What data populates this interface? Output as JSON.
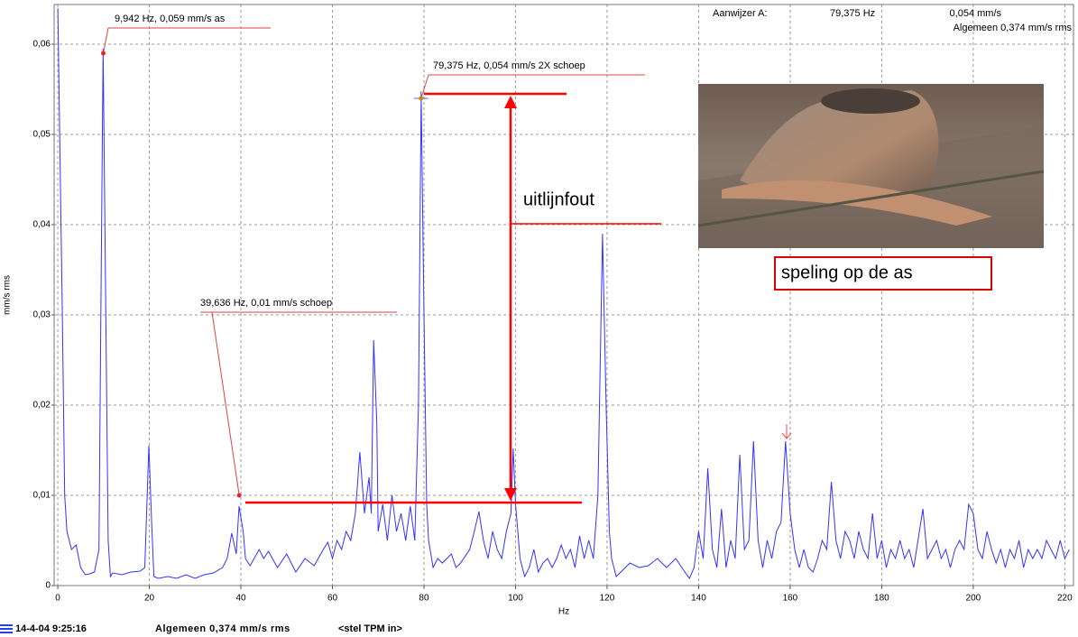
{
  "chart_data": {
    "type": "line",
    "color": "#3333ff",
    "y_label": "mm/s rms",
    "x_label": "Hz",
    "xlim": [
      -0.8,
      221.9
    ],
    "ylim": [
      0,
      0.0644
    ],
    "xticks": [
      0,
      20,
      40,
      60,
      80,
      100,
      120,
      140,
      160,
      180,
      200,
      220
    ],
    "yticks": [
      0,
      {
        "value": 0.01,
        "label": "0,01"
      },
      {
        "value": 0.02,
        "label": "0,02"
      },
      {
        "value": 0.03,
        "label": "0,03"
      },
      {
        "value": 0.04,
        "label": "0,04"
      },
      {
        "value": 0.05,
        "label": "0,05"
      },
      {
        "value": 0.06,
        "label": "0,06"
      }
    ],
    "grid": true,
    "x": [
      0,
      1,
      1.5,
      2,
      3,
      4,
      5,
      6,
      7,
      8,
      9,
      9.4,
      9.9,
      10.5,
      11,
      11.5,
      12,
      14,
      16,
      18,
      19,
      19.4,
      19.9,
      20.5,
      21,
      22,
      24,
      26,
      28,
      30,
      32,
      34,
      36,
      37,
      38,
      39,
      39.6,
      40.5,
      41,
      42,
      44,
      45,
      46,
      48,
      50,
      52,
      54,
      56,
      58,
      59,
      60,
      61,
      62,
      63,
      64,
      65,
      66,
      67,
      68,
      68.5,
      69,
      69.7,
      70,
      71,
      72,
      73,
      74,
      75,
      76,
      77,
      78,
      78.8,
      79.4,
      80,
      80.6,
      81,
      82,
      83,
      84,
      86,
      87,
      88,
      90,
      91,
      92,
      93,
      94,
      95,
      96,
      97,
      98,
      99,
      99.5,
      100,
      101,
      102,
      103,
      104,
      105,
      106,
      107,
      108,
      109,
      110,
      111,
      112,
      113,
      114,
      115,
      116,
      117,
      118,
      119,
      119.8,
      120.5,
      121,
      122,
      123,
      125,
      127,
      129,
      131,
      133,
      135,
      137,
      138,
      139,
      140,
      141,
      142,
      143,
      144,
      145,
      146,
      147,
      148,
      149,
      150,
      151,
      152,
      153,
      154,
      155,
      156,
      157,
      158,
      159,
      160,
      161,
      162,
      163,
      164,
      165,
      166,
      167,
      168,
      169,
      170,
      171,
      172,
      173,
      174,
      175,
      176,
      177,
      178,
      179,
      180,
      181,
      182,
      183,
      184,
      185,
      186,
      187,
      189,
      190,
      191,
      192,
      193,
      194,
      195,
      196,
      197,
      198,
      199,
      200,
      201,
      202,
      203,
      204,
      205,
      206,
      207,
      208,
      209,
      210,
      211,
      212,
      213,
      214,
      215,
      216,
      217,
      218,
      219,
      220,
      221
    ],
    "values": [
      0.064,
      0.03,
      0.01,
      0.006,
      0.004,
      0.0045,
      0.002,
      0.0012,
      0.0013,
      0.0015,
      0.004,
      0.03,
      0.0595,
      0.03,
      0.005,
      0.001,
      0.0014,
      0.0012,
      0.0015,
      0.0016,
      0.002,
      0.008,
      0.0155,
      0.007,
      0.001,
      0.0008,
      0.001,
      0.0008,
      0.0012,
      0.0008,
      0.0012,
      0.0014,
      0.002,
      0.003,
      0.0058,
      0.0035,
      0.0088,
      0.006,
      0.003,
      0.0022,
      0.004,
      0.003,
      0.0038,
      0.002,
      0.0035,
      0.0015,
      0.003,
      0.0022,
      0.004,
      0.0048,
      0.003,
      0.005,
      0.004,
      0.006,
      0.005,
      0.008,
      0.0148,
      0.008,
      0.012,
      0.008,
      0.0272,
      0.018,
      0.006,
      0.009,
      0.005,
      0.01,
      0.006,
      0.008,
      0.005,
      0.0088,
      0.005,
      0.02,
      0.0545,
      0.03,
      0.009,
      0.005,
      0.002,
      0.003,
      0.0025,
      0.0035,
      0.002,
      0.0025,
      0.004,
      0.006,
      0.0082,
      0.005,
      0.003,
      0.006,
      0.004,
      0.003,
      0.006,
      0.008,
      0.0152,
      0.009,
      0.003,
      0.001,
      0.002,
      0.004,
      0.0015,
      0.0025,
      0.003,
      0.002,
      0.003,
      0.0045,
      0.003,
      0.004,
      0.002,
      0.0055,
      0.003,
      0.005,
      0.003,
      0.01,
      0.039,
      0.02,
      0.006,
      0.003,
      0.001,
      0.0015,
      0.0025,
      0.002,
      0.0022,
      0.003,
      0.002,
      0.003,
      0.0015,
      0.0008,
      0.002,
      0.006,
      0.003,
      0.013,
      0.004,
      0.002,
      0.0085,
      0.002,
      0.005,
      0.003,
      0.0145,
      0.004,
      0.005,
      0.016,
      0.005,
      0.002,
      0.005,
      0.003,
      0.006,
      0.007,
      0.016,
      0.008,
      0.004,
      0.002,
      0.004,
      0.002,
      0.0015,
      0.003,
      0.005,
      0.004,
      0.0115,
      0.005,
      0.003,
      0.006,
      0.005,
      0.003,
      0.006,
      0.004,
      0.003,
      0.008,
      0.003,
      0.005,
      0.002,
      0.004,
      0.003,
      0.005,
      0.003,
      0.004,
      0.002,
      0.0085,
      0.003,
      0.004,
      0.005,
      0.003,
      0.004,
      0.002,
      0.004,
      0.005,
      0.004,
      0.009,
      0.008,
      0.004,
      0.003,
      0.006,
      0.004,
      0.0025,
      0.004,
      0.002,
      0.004,
      0.003,
      0.005,
      0.002,
      0.004,
      0.003,
      0.004,
      0.003,
      0.005,
      0.004,
      0.003,
      0.005,
      0.003,
      0.004
    ],
    "annotations": [
      {
        "text": "9,942 Hz, 0,059 mm/s as",
        "x": 9.942,
        "y": 0.059
      },
      {
        "text": "39,636 Hz, 0,01 mm/s schoep",
        "x": 39.636,
        "y": 0.01
      },
      {
        "text": "79,375 Hz, 0,054 mm/s 2X schoep",
        "x": 79.375,
        "y": 0.054
      }
    ],
    "cursor_readout": {
      "label": "Aanwijzer A:",
      "frequency": "79,375 Hz",
      "amplitude": "0,054 mm/s",
      "overall": "Algemeen 0,374 mm/s rms"
    },
    "callouts": {
      "misalignment": "uitlijnfout",
      "clearance": "speling op de as"
    },
    "status_bar": {
      "timestamp": "14-4-04 9:25:16",
      "overall": "Algemeen 0,374 mm/s rms",
      "tpm": "<stel TPM in>"
    }
  }
}
